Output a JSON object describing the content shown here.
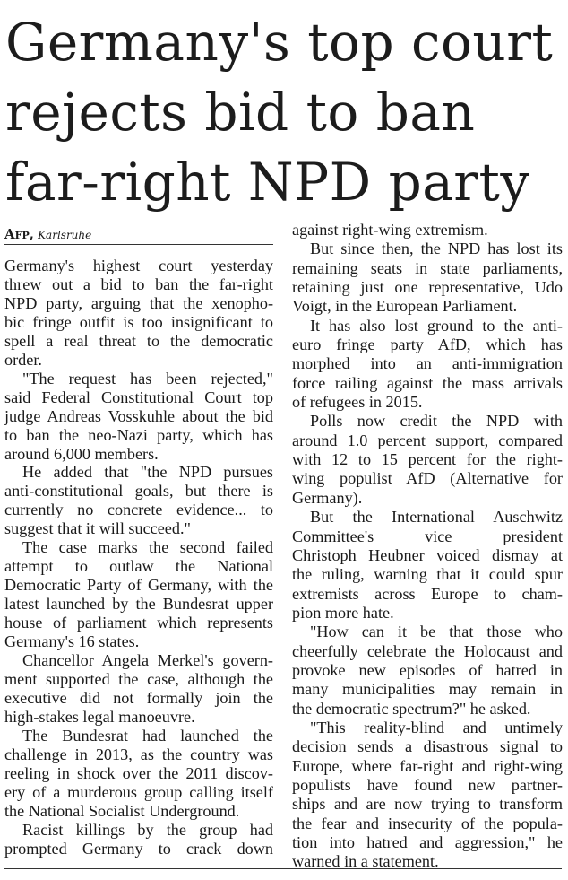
{
  "headline": [
    "Germany's top court",
    "rejects bid to ban",
    "far-right NPD party"
  ],
  "byline": {
    "agency": "Afp,",
    "place": "Karlsruhe"
  },
  "columns": [
    [
      [
        "Germany's highest court yesterday",
        "threw out a bid to ban the far-right",
        "NPD party, arguing that the xenopho-",
        "bic fringe outfit is too insignificant to",
        "spell a real threat to the democratic",
        "order."
      ],
      [
        "\"The request has been rejected,\"",
        "said Federal Constitutional Court top",
        "judge Andreas Vosskuhle about the bid",
        "to ban the neo-Nazi party, which has",
        "around 6,000 members."
      ],
      [
        "He added that \"the NPD pursues",
        "anti-constitutional goals, but there is",
        "currently no concrete evidence... to",
        "suggest that it will succeed.\""
      ],
      [
        "The case marks the second failed",
        "attempt to outlaw the National",
        "Democratic Party of Germany, with the",
        "latest launched by the Bundesrat upper",
        "house of parliament which represents",
        "Germany's 16 states."
      ],
      [
        "Chancellor Angela Merkel's govern-",
        "ment supported the case, although the",
        "executive did not formally join the",
        "high-stakes legal manoeuvre."
      ],
      [
        "The Bundesrat had launched the",
        "challenge in 2013, as the country was",
        "reeling in shock over the 2011 discov-",
        "ery of a murderous group calling itself",
        "the National Socialist Underground."
      ],
      [
        "Racist killings by the group had",
        "prompted Germany to crack down"
      ]
    ],
    [
      [
        "against right-wing extremism."
      ],
      [
        "But since then, the NPD has lost its",
        "remaining seats in state parliaments,",
        "retaining just one representative, Udo",
        "Voigt, in the European Parliament."
      ],
      [
        "It has also lost ground to the anti-",
        "euro fringe party AfD, which has",
        "morphed into an anti-immigration",
        "force railing against the mass arrivals",
        "of refugees in 2015."
      ],
      [
        "Polls now credit the NPD with",
        "around 1.0 percent support, compared",
        "with 12 to 15 percent for the right-",
        "wing populist AfD (Alternative for",
        "Germany)."
      ],
      [
        "But the International Auschwitz",
        "Committee's vice president",
        "Christoph Heubner voiced dismay at",
        "the ruling, warning that it could spur",
        "extremists across Europe to cham-",
        "pion more hate."
      ],
      [
        "\"How can it be that those who",
        "cheerfully celebrate the Holocaust and",
        "provoke new episodes of hatred in",
        "many municipalities may remain in",
        "the democratic spectrum?\" he asked."
      ],
      [
        "\"This reality-blind and untimely",
        "decision sends a disastrous signal to",
        "Europe, where far-right and right-wing",
        "populists have found new partner-",
        "ships and are now trying to transform",
        "the fear and insecurity of the popula-",
        "tion into hatred and aggression,\" he",
        "warned in a statement."
      ]
    ]
  ]
}
